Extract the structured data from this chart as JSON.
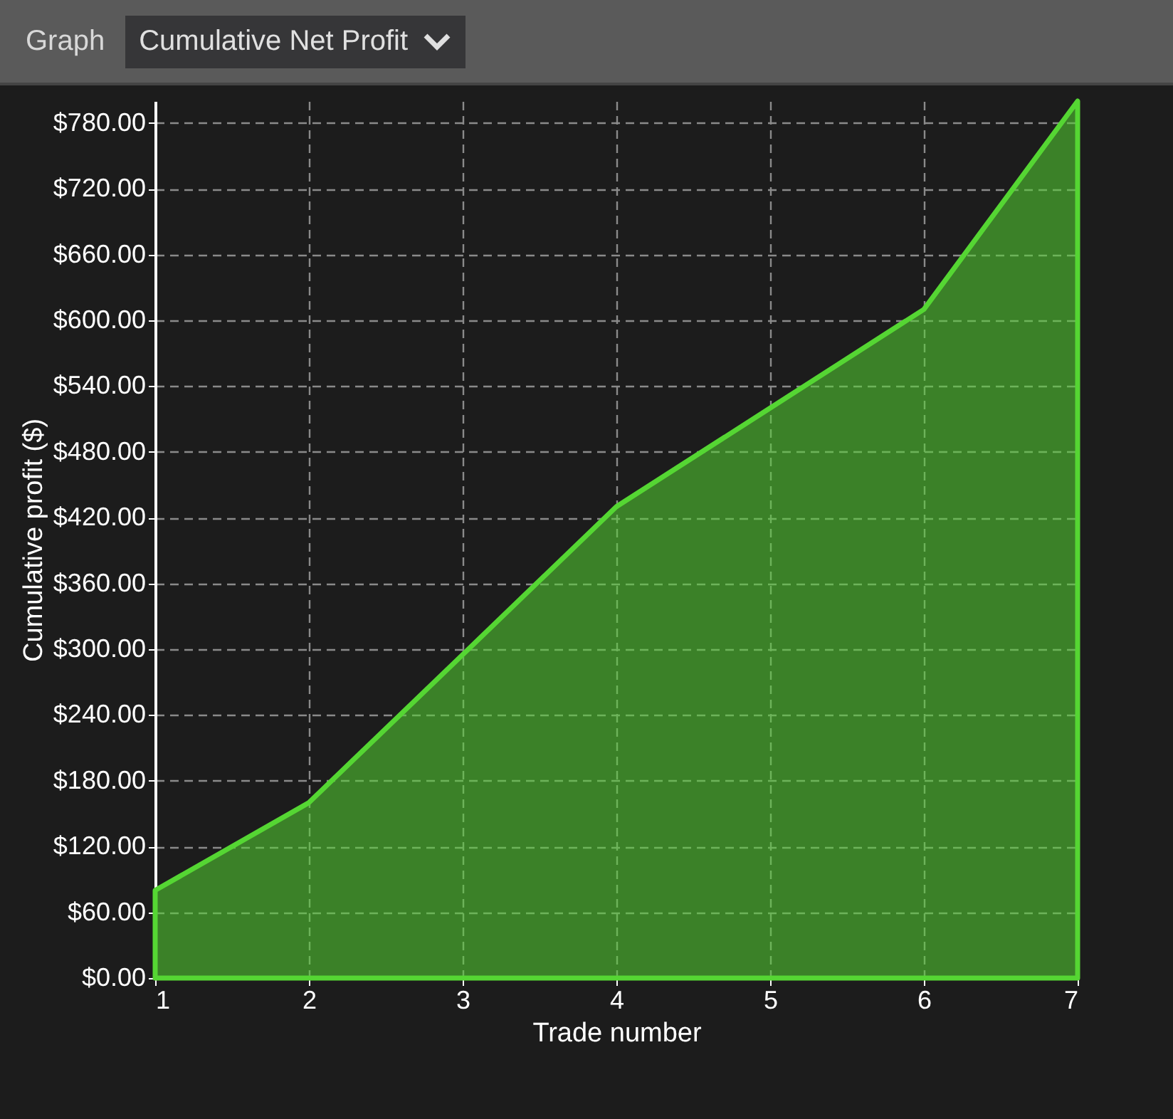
{
  "chart_data": {
    "type": "area",
    "title": "Cumulative Net Profit",
    "annotations": [
      "Graph"
    ],
    "xlabel": "Trade number",
    "ylabel": "Cumulative profit ($)",
    "x": [
      1,
      2,
      3,
      4,
      5,
      6,
      7
    ],
    "series": [
      {
        "color": "#55d633",
        "values": [
          80,
          160,
          295,
          430,
          520,
          610,
          800
        ]
      }
    ],
    "xlim": [
      1,
      7
    ],
    "xticks": [
      1,
      2,
      3,
      4,
      5,
      6,
      7
    ],
    "ylim": [
      0,
      800
    ],
    "yticks": [
      {
        "value": 0,
        "label": "$0.00"
      },
      {
        "value": 60,
        "label": "$60.00"
      },
      {
        "value": 120,
        "label": "$120.00"
      },
      {
        "value": 180,
        "label": "$180.00"
      },
      {
        "value": 240,
        "label": "$240.00"
      },
      {
        "value": 300,
        "label": "$300.00"
      },
      {
        "value": 360,
        "label": "$360.00"
      },
      {
        "value": 420,
        "label": "$420.00"
      },
      {
        "value": 480,
        "label": "$480.00"
      },
      {
        "value": 540,
        "label": "$540.00"
      },
      {
        "value": 600,
        "label": "$600.00"
      },
      {
        "value": 660,
        "label": "$660.00"
      },
      {
        "value": 720,
        "label": "$720.00"
      },
      {
        "value": 780,
        "label": "$780.00"
      }
    ],
    "grid": true
  }
}
